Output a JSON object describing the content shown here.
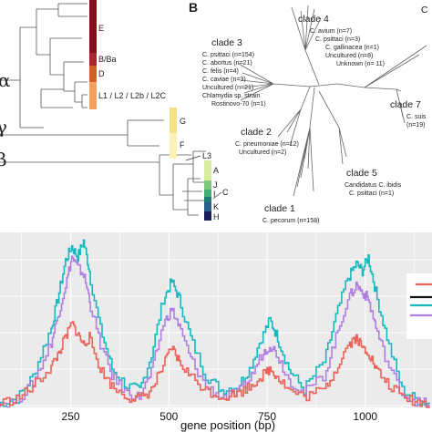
{
  "panel_a": {
    "greek_alpha": "α",
    "greek_gamma": "γ",
    "greek_beta": "β",
    "segments": [
      {
        "label": "E",
        "color": "#8b0a1a"
      },
      {
        "label": "B/Ba",
        "color": "#b0222e"
      },
      {
        "label": "D",
        "color": "#d95a2a"
      },
      {
        "label": "L1 / L2 / L2b / L2C",
        "color": "#f0a060"
      },
      {
        "label": "G",
        "color": "#f5e08a"
      },
      {
        "label": "F",
        "color": "#fbf2b8"
      },
      {
        "label": "L3",
        "color": "#ffffff"
      },
      {
        "label": "A",
        "color": "#d7ec9c"
      },
      {
        "label": "J",
        "color": "#7fc97f"
      },
      {
        "label": "I",
        "color": "#41ae76"
      },
      {
        "label": "C",
        "color": "#1d7d74"
      },
      {
        "label": "K",
        "color": "#2c5e8c"
      },
      {
        "label": "H",
        "color": "#1a1f5c"
      }
    ]
  },
  "panel_b": {
    "letter": "B",
    "clades": [
      {
        "title": "clade 4",
        "lines": [
          "C. avium (n=7)",
          "C. psittaci (n=3)",
          "C. gallinacea (n=1)",
          "Uncultured (n=8)",
          "Unknown (n= 11)"
        ]
      },
      {
        "title": "clade 3",
        "lines": [
          "C. psittaci (n=154)",
          "C. abortus (n=21)",
          "C. felis (n=4)",
          "C. caviae (n=3)",
          "Uncultured (n=21)",
          "Chlamydia sp. strain",
          "Rostinovo-70 (n=1)"
        ]
      },
      {
        "title": "clade 2",
        "lines": [
          "C. pneumoniae (n=12)",
          "Uncultured (n=2)"
        ]
      },
      {
        "title": "clade 5",
        "lines": [
          "Candidatus C. ibidis",
          "C. psittaci (n=1)"
        ]
      },
      {
        "title": "clade 1",
        "lines": [
          "C. pecorum (n=158)"
        ]
      },
      {
        "title": "clade 7",
        "lines": [
          "C. suis",
          "(n=19)"
        ]
      },
      {
        "title": "C",
        "lines": []
      }
    ]
  },
  "panel_c": {
    "chart_data": {
      "type": "line",
      "xlabel": "gene position (bp)",
      "ylabel": "",
      "xlim": [
        70,
        1170
      ],
      "ylim": [
        0,
        1
      ],
      "x_ticks": [
        250,
        500,
        750,
        1000
      ],
      "grid": true,
      "legend": "right (cut off)",
      "series": [
        {
          "color": "#19b8bf",
          "x": [
            70,
            120,
            160,
            200,
            220,
            240,
            255,
            270,
            285,
            300,
            330,
            360,
            400,
            430,
            460,
            490,
            510,
            530,
            560,
            600,
            640,
            680,
            710,
            740,
            760,
            780,
            810,
            850,
            900,
            930,
            960,
            980,
            995,
            1010,
            1030,
            1060,
            1100,
            1140,
            1170
          ],
          "y": [
            0.02,
            0.05,
            0.18,
            0.42,
            0.62,
            0.84,
            0.92,
            0.86,
            0.95,
            0.78,
            0.45,
            0.22,
            0.12,
            0.1,
            0.3,
            0.62,
            0.72,
            0.62,
            0.4,
            0.18,
            0.1,
            0.12,
            0.22,
            0.4,
            0.5,
            0.4,
            0.22,
            0.1,
            0.26,
            0.52,
            0.74,
            0.82,
            0.78,
            0.86,
            0.66,
            0.4,
            0.1,
            0.04,
            0.02
          ]
        },
        {
          "color": "#b07fe0",
          "x": [
            70,
            120,
            160,
            200,
            220,
            240,
            255,
            270,
            285,
            300,
            330,
            360,
            400,
            430,
            460,
            490,
            510,
            530,
            560,
            600,
            640,
            680,
            710,
            740,
            760,
            780,
            810,
            850,
            900,
            930,
            960,
            980,
            995,
            1010,
            1030,
            1060,
            1100,
            1140,
            1170
          ],
          "y": [
            0.02,
            0.04,
            0.14,
            0.34,
            0.52,
            0.7,
            0.86,
            0.8,
            0.76,
            0.62,
            0.36,
            0.18,
            0.08,
            0.06,
            0.2,
            0.48,
            0.56,
            0.46,
            0.28,
            0.12,
            0.06,
            0.08,
            0.16,
            0.3,
            0.36,
            0.3,
            0.16,
            0.08,
            0.18,
            0.4,
            0.62,
            0.7,
            0.66,
            0.62,
            0.46,
            0.26,
            0.08,
            0.03,
            0.02
          ]
        },
        {
          "color": "#e9645a",
          "x": [
            70,
            120,
            160,
            200,
            220,
            240,
            255,
            270,
            285,
            300,
            330,
            360,
            400,
            430,
            460,
            490,
            510,
            530,
            560,
            600,
            640,
            680,
            710,
            740,
            760,
            780,
            810,
            850,
            900,
            930,
            960,
            980,
            995,
            1010,
            1030,
            1060,
            1100,
            1140,
            1170
          ],
          "y": [
            0.02,
            0.05,
            0.12,
            0.22,
            0.3,
            0.4,
            0.48,
            0.42,
            0.36,
            0.4,
            0.22,
            0.12,
            0.06,
            0.05,
            0.1,
            0.24,
            0.34,
            0.26,
            0.18,
            0.1,
            0.06,
            0.08,
            0.12,
            0.18,
            0.22,
            0.18,
            0.1,
            0.06,
            0.1,
            0.22,
            0.36,
            0.4,
            0.34,
            0.32,
            0.22,
            0.14,
            0.06,
            0.03,
            0.02
          ]
        }
      ]
    }
  }
}
